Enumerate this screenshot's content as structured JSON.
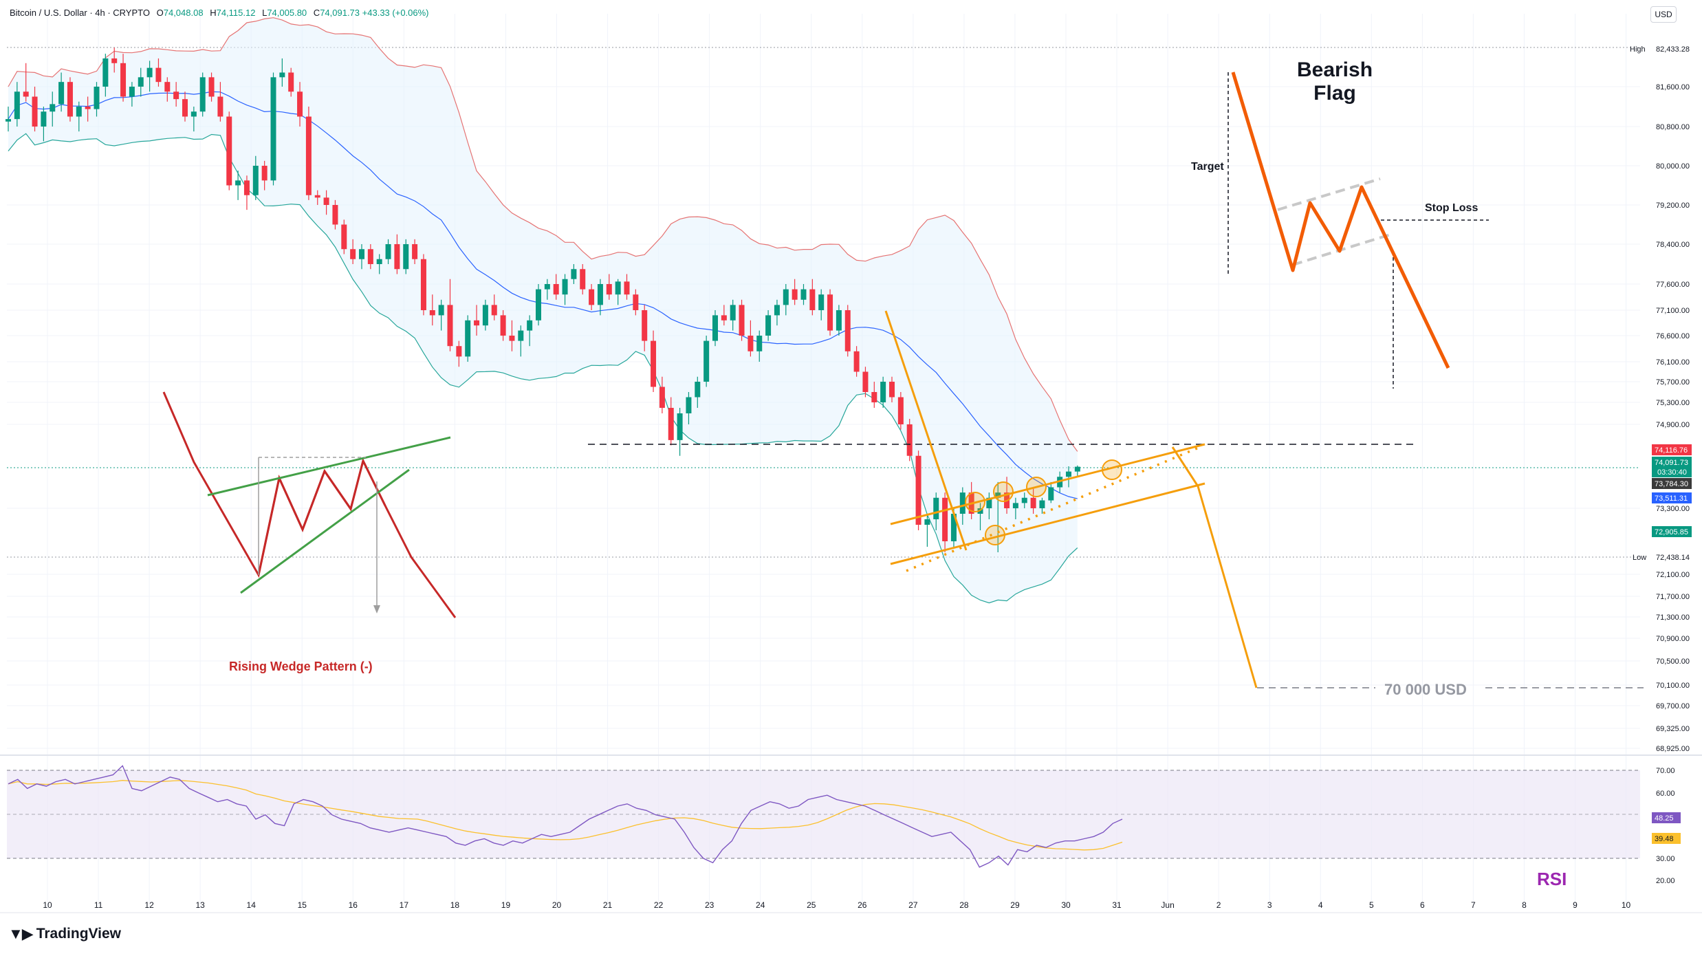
{
  "header": {
    "symbol": "Bitcoin / U.S. Dollar · 4h · CRYPTO",
    "o_label": "O",
    "o": "74,048.08",
    "h_label": "H",
    "h": "74,115.12",
    "l_label": "L",
    "l": "74,005.80",
    "c_label": "C",
    "c": "74,091.73",
    "change": "+43.33 (+0.06%)"
  },
  "currency_button": "USD",
  "brand": "TradingView",
  "annotations": {
    "bearish_flag_line1": "Bearish",
    "bearish_flag_line2": "Flag",
    "target": "Target",
    "stop_loss": "Stop Loss",
    "rising_wedge": "Rising Wedge Pattern (-)",
    "target_price": "70 000 USD",
    "rsi": "RSI"
  },
  "colors": {
    "up": "#089981",
    "down": "#f23645",
    "band_fill": "#e3f2fd",
    "band_line": "#e57373",
    "basis": "#2962ff",
    "orange": "#f59e0b",
    "flag_orange": "#f25c05",
    "wedge_red": "#c62828",
    "wedge_green": "#43a047",
    "rsi_line": "#7e57c2",
    "rsi_ma": "#fbc02d",
    "rsi_fill": "#ede7f6"
  },
  "price_labels": {
    "high_tag": "High",
    "high": "82,433.28",
    "low_tag": "Low",
    "low": "72,438.14",
    "current_red": "74,116.76",
    "current": "74,091.73",
    "countdown": "03:30:40",
    "dark_tag": "73,784.30",
    "blue_tag": "73,511.31",
    "green_tag": "72,905.85"
  },
  "rsi_labels": {
    "value": "48.25",
    "ma": "39.48"
  },
  "chart_data": {
    "type": "candlestick",
    "title": "Bitcoin / U.S. Dollar · 4h · CRYPTO",
    "timeframe": "4h",
    "x_tick_labels": [
      "10",
      "11",
      "12",
      "13",
      "14",
      "15",
      "16",
      "17",
      "18",
      "19",
      "20",
      "21",
      "22",
      "23",
      "24",
      "25",
      "26",
      "27",
      "28",
      "29",
      "30",
      "31",
      "Jun",
      "2",
      "3",
      "4",
      "5",
      "6",
      "7",
      "8",
      "9",
      "10"
    ],
    "y_tick_labels": [
      "81,600.00",
      "80,800.00",
      "80,000.00",
      "79,200.00",
      "78,400.00",
      "77,600.00",
      "77,100.00",
      "76,600.00",
      "76,100.00",
      "75,700.00",
      "75,300.00",
      "74,900.00",
      "73,300.00",
      "72,100.00",
      "71,700.00",
      "71,300.00",
      "70,900.00",
      "70,500.00",
      "70,100.00",
      "69,700.00",
      "69,325.00",
      "68,925.00"
    ],
    "ylim": [
      68700,
      82700
    ],
    "rsi_ticks": [
      "70.00",
      "60.00",
      "30.00",
      "20.00"
    ],
    "rsi_ylim": [
      15,
      73
    ],
    "rsi_bands": [
      30,
      70
    ],
    "candles_ohlc": [
      [
        80900,
        81200,
        80700,
        80950
      ],
      [
        80950,
        81700,
        80800,
        81500
      ],
      [
        81500,
        82100,
        81300,
        81400
      ],
      [
        81400,
        81600,
        80700,
        80800
      ],
      [
        80800,
        81200,
        80500,
        81100
      ],
      [
        81100,
        81500,
        80800,
        81250
      ],
      [
        81250,
        81900,
        81100,
        81700
      ],
      [
        81700,
        81800,
        80900,
        81000
      ],
      [
        81000,
        81300,
        80700,
        81200
      ],
      [
        81200,
        81400,
        80900,
        81150
      ],
      [
        81150,
        81700,
        81000,
        81600
      ],
      [
        81600,
        82300,
        81400,
        82200
      ],
      [
        82200,
        82430,
        81900,
        82100
      ],
      [
        82100,
        82300,
        81300,
        81400
      ],
      [
        81400,
        81700,
        81200,
        81600
      ],
      [
        81600,
        82000,
        81400,
        81800
      ],
      [
        81800,
        82150,
        81500,
        82000
      ],
      [
        82000,
        82200,
        81600,
        81700
      ],
      [
        81700,
        81800,
        81300,
        81500
      ],
      [
        81500,
        81700,
        81200,
        81350
      ],
      [
        81350,
        81500,
        80900,
        81000
      ],
      [
        81000,
        81200,
        80700,
        81100
      ],
      [
        81100,
        81900,
        81000,
        81800
      ],
      [
        81800,
        81900,
        81300,
        81400
      ],
      [
        81400,
        81700,
        80900,
        81000
      ],
      [
        81000,
        81100,
        79500,
        79600
      ],
      [
        79600,
        79900,
        79300,
        79700
      ],
      [
        79700,
        79800,
        79100,
        79400
      ],
      [
        79400,
        80200,
        79300,
        80000
      ],
      [
        80000,
        80100,
        79500,
        79700
      ],
      [
        79700,
        81900,
        79600,
        81800
      ],
      [
        81800,
        82200,
        81600,
        81900
      ],
      [
        81900,
        82000,
        81400,
        81500
      ],
      [
        81500,
        81700,
        80800,
        81000
      ],
      [
        81000,
        81200,
        79300,
        79400
      ],
      [
        79400,
        79500,
        79200,
        79350
      ],
      [
        79350,
        79500,
        79000,
        79200
      ],
      [
        79200,
        79300,
        78700,
        78800
      ],
      [
        78800,
        78900,
        78200,
        78300
      ],
      [
        78300,
        78500,
        78000,
        78100
      ],
      [
        78100,
        78400,
        77900,
        78300
      ],
      [
        78300,
        78400,
        77900,
        78000
      ],
      [
        78000,
        78200,
        77800,
        78100
      ],
      [
        78100,
        78500,
        78000,
        78400
      ],
      [
        78400,
        78600,
        77800,
        77900
      ],
      [
        77900,
        78500,
        77800,
        78400
      ],
      [
        78400,
        78500,
        78000,
        78100
      ],
      [
        78100,
        78200,
        77000,
        77100
      ],
      [
        77100,
        77400,
        76800,
        77000
      ],
      [
        77000,
        77300,
        76700,
        77200
      ],
      [
        77200,
        77700,
        76300,
        76400
      ],
      [
        76400,
        76500,
        76000,
        76200
      ],
      [
        76200,
        77000,
        76100,
        76900
      ],
      [
        76900,
        77200,
        76600,
        76800
      ],
      [
        76800,
        77300,
        76700,
        77200
      ],
      [
        77200,
        77400,
        76900,
        77000
      ],
      [
        77000,
        77100,
        76500,
        76600
      ],
      [
        76600,
        76900,
        76300,
        76500
      ],
      [
        76500,
        76800,
        76200,
        76700
      ],
      [
        76700,
        77000,
        76400,
        76900
      ],
      [
        76900,
        77600,
        76800,
        77500
      ],
      [
        77500,
        77700,
        77300,
        77600
      ],
      [
        77600,
        77800,
        77300,
        77400
      ],
      [
        77400,
        77800,
        77200,
        77700
      ],
      [
        77700,
        78000,
        77600,
        77900
      ],
      [
        77900,
        78000,
        77400,
        77500
      ],
      [
        77500,
        77600,
        77100,
        77200
      ],
      [
        77200,
        77700,
        77000,
        77600
      ],
      [
        77600,
        77800,
        77300,
        77400
      ],
      [
        77400,
        77700,
        77200,
        77650
      ],
      [
        77650,
        77800,
        77300,
        77400
      ],
      [
        77400,
        77500,
        77000,
        77100
      ],
      [
        77100,
        77200,
        76300,
        76500
      ],
      [
        76500,
        76700,
        75500,
        75600
      ],
      [
        75600,
        75800,
        75100,
        75200
      ],
      [
        75200,
        75400,
        74500,
        74600
      ],
      [
        74600,
        75200,
        74300,
        75100
      ],
      [
        75100,
        75500,
        74900,
        75400
      ],
      [
        75400,
        75800,
        75200,
        75700
      ],
      [
        75700,
        76600,
        75600,
        76500
      ],
      [
        76500,
        77100,
        76400,
        77000
      ],
      [
        77000,
        77200,
        76800,
        76900
      ],
      [
        76900,
        77300,
        76700,
        77200
      ],
      [
        77200,
        77300,
        76500,
        76600
      ],
      [
        76600,
        76900,
        76200,
        76300
      ],
      [
        76300,
        76700,
        76100,
        76600
      ],
      [
        76600,
        77100,
        76500,
        77000
      ],
      [
        77000,
        77300,
        76800,
        77200
      ],
      [
        77200,
        77600,
        77000,
        77500
      ],
      [
        77500,
        77700,
        77200,
        77300
      ],
      [
        77300,
        77600,
        77200,
        77500
      ],
      [
        77500,
        77700,
        77000,
        77100
      ],
      [
        77100,
        77500,
        76900,
        77400
      ],
      [
        77400,
        77500,
        76600,
        76700
      ],
      [
        76700,
        77200,
        76600,
        77100
      ],
      [
        77100,
        77200,
        76200,
        76300
      ],
      [
        76300,
        76400,
        75800,
        75900
      ],
      [
        75900,
        76000,
        75400,
        75500
      ],
      [
        75500,
        75700,
        75200,
        75300
      ],
      [
        75300,
        75800,
        75200,
        75700
      ],
      [
        75700,
        75800,
        75300,
        75400
      ],
      [
        75400,
        75500,
        74800,
        74900
      ],
      [
        74900,
        75000,
        74200,
        74300
      ],
      [
        74300,
        74400,
        72900,
        73000
      ],
      [
        73000,
        73200,
        72600,
        73100
      ],
      [
        73100,
        73600,
        72900,
        73500
      ],
      [
        73500,
        73600,
        72500,
        72700
      ],
      [
        72700,
        73300,
        72600,
        73200
      ],
      [
        73200,
        73700,
        73000,
        73600
      ],
      [
        73600,
        73800,
        73100,
        73200
      ],
      [
        73200,
        73400,
        72900,
        73300
      ],
      [
        73300,
        73600,
        73100,
        73500
      ],
      [
        73500,
        73800,
        72500,
        73600
      ],
      [
        73600,
        73900,
        73200,
        73300
      ],
      [
        73300,
        73500,
        73100,
        73400
      ],
      [
        73400,
        73600,
        73300,
        73500
      ],
      [
        73500,
        73700,
        73200,
        73300
      ],
      [
        73300,
        73500,
        73200,
        73450
      ],
      [
        73450,
        73800,
        73400,
        73700
      ],
      [
        73700,
        74000,
        73600,
        73900
      ],
      [
        73900,
        74100,
        73700,
        74000
      ],
      [
        74000,
        74116,
        73900,
        74092
      ]
    ],
    "rsi_series": [
      64,
      66,
      62,
      64,
      63,
      65,
      66,
      64,
      65,
      66,
      67,
      68,
      72,
      62,
      61,
      63,
      65,
      67,
      66,
      62,
      60,
      58,
      56,
      57,
      55,
      54,
      48,
      50,
      46,
      45,
      55,
      57,
      56,
      54,
      50,
      48,
      47,
      46,
      44,
      43,
      42,
      43,
      44,
      43,
      42,
      41,
      40,
      37,
      36,
      38,
      39,
      37,
      36,
      38,
      37,
      39,
      41,
      40,
      41,
      42,
      45,
      48,
      50,
      52,
      54,
      55,
      53,
      52,
      50,
      49,
      48,
      42,
      35,
      30,
      28,
      34,
      38,
      46,
      52,
      54,
      56,
      55,
      53,
      54,
      57,
      58,
      59,
      57,
      56,
      55,
      54,
      52,
      50,
      48,
      46,
      44,
      42,
      40,
      41,
      42,
      38,
      34,
      26,
      28,
      31,
      27,
      34,
      33,
      36,
      35,
      37,
      38,
      38,
      39,
      40,
      42,
      46,
      48
    ],
    "rsi_current": 48.25,
    "rsi_ma_current": 39.48,
    "bollinger_bands": "shaded envelope with basis",
    "levels": {
      "high": 82433.28,
      "low": 72438.14,
      "current": 74091.73,
      "resistance": 74116.76,
      "target": 70000
    },
    "grid": true
  }
}
